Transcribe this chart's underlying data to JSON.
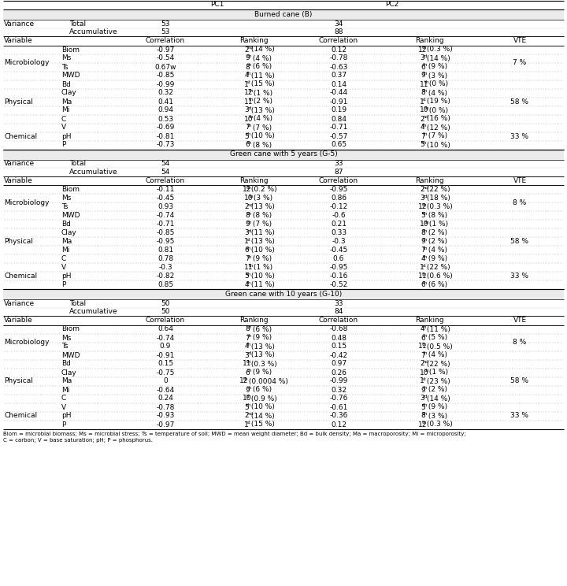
{
  "pc1_label": "PC1",
  "pc2_label": "PC2",
  "sections": [
    {
      "header": "Burned cane (B)",
      "variance_total_pc1": "53",
      "variance_acc_pc1": "53",
      "variance_total_pc2": "34",
      "variance_acc_pc2": "88",
      "rows": [
        {
          "group": "Microbiology",
          "var": "Biom",
          "c1": "-0.97",
          "r1": "2nd (14 %)",
          "c2": "0.12",
          "r2": "12th (0.3 %)",
          "vte": "7 %"
        },
        {
          "group": "",
          "var": "Ms",
          "c1": "-0.54",
          "r1": "9th (4 %)",
          "c2": "-0.78",
          "r2": "3rd (14 %)",
          "vte": ""
        },
        {
          "group": "",
          "var": "Ts",
          "c1": "0.67w",
          "r1": "8th (6 %)",
          "c2": "-0.63",
          "r2": "6th (9 %)",
          "vte": ""
        },
        {
          "group": "",
          "var": "MWD",
          "c1": "-0.85",
          "r1": "4th (11 %)",
          "c2": "0.37",
          "r2": "9th (3 %)",
          "vte": ""
        },
        {
          "group": "Physical",
          "var": "Bd",
          "c1": "-0.99",
          "r1": "1st (15 %)",
          "c2": "0.14",
          "r2": "11th (0 %)",
          "vte": "58 %"
        },
        {
          "group": "",
          "var": "Clay",
          "c1": "0.32",
          "r1": "12th (1 %)",
          "c2": "-0.44",
          "r2": "8th (4 %)",
          "vte": ""
        },
        {
          "group": "",
          "var": "Ma",
          "c1": "0.41",
          "r1": "11th (2 %)",
          "c2": "-0.91",
          "r2": "1st (19 %)",
          "vte": ""
        },
        {
          "group": "",
          "var": "Mi",
          "c1": "0.94",
          "r1": "3rd (13 %)",
          "c2": "0.19",
          "r2": "10th (0 %)",
          "vte": ""
        },
        {
          "group": "",
          "var": "C",
          "c1": "0.53",
          "r1": "10th (4 %)",
          "c2": "0.84",
          "r2": "2nd (16 %)",
          "vte": ""
        },
        {
          "group": "Chemical",
          "var": "V",
          "c1": "-0.69",
          "r1": "7th (7 %)",
          "c2": "-0.71",
          "r2": "4th (12 %)",
          "vte": "33 %"
        },
        {
          "group": "",
          "var": "pH",
          "c1": "-0.81",
          "r1": "5th (10 %)",
          "c2": "-0.57",
          "r2": "7th (7 %)",
          "vte": ""
        },
        {
          "group": "",
          "var": "P",
          "c1": "-0.73",
          "r1": "6th (8 %)",
          "c2": "0.65",
          "r2": "5th (10 %)",
          "vte": ""
        }
      ]
    },
    {
      "header": "Green cane with 5 years (G-5)",
      "variance_total_pc1": "54",
      "variance_acc_pc1": "54",
      "variance_total_pc2": "33",
      "variance_acc_pc2": "87",
      "rows": [
        {
          "group": "Microbiology",
          "var": "Biom",
          "c1": "-0.11",
          "r1": "12th (0.2 %)",
          "c2": "-0.95",
          "r2": "2nd (22 %)",
          "vte": "8 %"
        },
        {
          "group": "",
          "var": "Ms",
          "c1": "-0.45",
          "r1": "10th (3 %)",
          "c2": "0.86",
          "r2": "3rd (18 %)",
          "vte": ""
        },
        {
          "group": "",
          "var": "Ts",
          "c1": "0.93",
          "r1": "2nd (13 %)",
          "c2": "-0.12",
          "r2": "12th (0.3 %)",
          "vte": ""
        },
        {
          "group": "",
          "var": "MWD",
          "c1": "-0.74",
          "r1": "8th (8 %)",
          "c2": "-0.6",
          "r2": "5th (8 %)",
          "vte": ""
        },
        {
          "group": "Physical",
          "var": "Bd",
          "c1": "-0.71",
          "r1": "9th (7 %)",
          "c2": "0.21",
          "r2": "10th (1 %)",
          "vte": "58 %"
        },
        {
          "group": "",
          "var": "Clay",
          "c1": "-0.85",
          "r1": "3rd (11 %)",
          "c2": "0.33",
          "r2": "8th (2 %)",
          "vte": ""
        },
        {
          "group": "",
          "var": "Ma",
          "c1": "-0.95",
          "r1": "1st (13 %)",
          "c2": "-0.3",
          "r2": "9th (2 %)",
          "vte": ""
        },
        {
          "group": "",
          "var": "Mi",
          "c1": "0.81",
          "r1": "6th (10 %)",
          "c2": "-0.45",
          "r2": "7th (4 %)",
          "vte": ""
        },
        {
          "group": "",
          "var": "C",
          "c1": "0.78",
          "r1": "7th (9 %)",
          "c2": "0.6",
          "r2": "4th (9 %)",
          "vte": ""
        },
        {
          "group": "Chemical",
          "var": "V",
          "c1": "-0.3",
          "r1": "11th (1 %)",
          "c2": "-0.95",
          "r2": "1st (22 %)",
          "vte": "33 %"
        },
        {
          "group": "",
          "var": "pH",
          "c1": "-0.82",
          "r1": "5th (10 %)",
          "c2": "-0.16",
          "r2": "11th (0.6 %)",
          "vte": ""
        },
        {
          "group": "",
          "var": "P",
          "c1": "0.85",
          "r1": "4th (11 %)",
          "c2": "-0.52",
          "r2": "6th (6 %)",
          "vte": ""
        }
      ]
    },
    {
      "header": "Green cane with 10 years (G-10)",
      "variance_total_pc1": "50",
      "variance_acc_pc1": "50",
      "variance_total_pc2": "33",
      "variance_acc_pc2": "84",
      "rows": [
        {
          "group": "Microbiology",
          "var": "Biom",
          "c1": "0.64",
          "r1": "8th (6 %)",
          "c2": "-0.68",
          "r2": "4th (11 %)",
          "vte": "8 %"
        },
        {
          "group": "",
          "var": "Ms",
          "c1": "-0.74",
          "r1": "7th (9 %)",
          "c2": "0.48",
          "r2": "6th (5 %)",
          "vte": ""
        },
        {
          "group": "",
          "var": "Ts",
          "c1": "0.9",
          "r1": "4th (13 %)",
          "c2": "0.15",
          "r2": "11th (0.5 %)",
          "vte": ""
        },
        {
          "group": "",
          "var": "MWD",
          "c1": "-0.91",
          "r1": "3rd (13 %)",
          "c2": "-0.42",
          "r2": "7th (4 %)",
          "vte": ""
        },
        {
          "group": "Physical",
          "var": "Bd",
          "c1": "0.15",
          "r1": "11th (0.3 %)",
          "c2": "0.97",
          "r2": "2nd (22 %)",
          "vte": "58 %"
        },
        {
          "group": "",
          "var": "Clay",
          "c1": "-0.75",
          "r1": "6th (9 %)",
          "c2": "0.26",
          "r2": "10th (1 %)",
          "vte": ""
        },
        {
          "group": "",
          "var": "Ma",
          "c1": "0",
          "r1": "12th (0.0004 %)",
          "c2": "-0.99",
          "r2": "1st (23 %)",
          "vte": ""
        },
        {
          "group": "",
          "var": "Mi",
          "c1": "-0.64",
          "r1": "9th (6 %)",
          "c2": "0.32",
          "r2": "9th (2 %)",
          "vte": ""
        },
        {
          "group": "",
          "var": "C",
          "c1": "0.24",
          "r1": "10th (0.9 %)",
          "c2": "-0.76",
          "r2": "3rd (14 %)",
          "vte": ""
        },
        {
          "group": "Chemical",
          "var": "V",
          "c1": "-0.78",
          "r1": "5th (10 %)",
          "c2": "-0.61",
          "r2": "5th (9 %)",
          "vte": "33 %"
        },
        {
          "group": "",
          "var": "pH",
          "c1": "-0.93",
          "r1": "2nd (14 %)",
          "c2": "-0.36",
          "r2": "8th (3 %)",
          "vte": ""
        },
        {
          "group": "",
          "var": "P",
          "c1": "-0.97",
          "r1": "1st (15 %)",
          "c2": "0.12",
          "r2": "12th (0.3 %)",
          "vte": ""
        }
      ]
    }
  ],
  "footnote": "Biom = microbial biomass; Ms = microbial stress; Ts = temperature of soil; MWD = mean weight diameter; Bd = bulk density; Ma = macroporosity; Mi = microporosity;",
  "footnote2": "C = carbon; V = base saturation; pH; P = phosphorus."
}
